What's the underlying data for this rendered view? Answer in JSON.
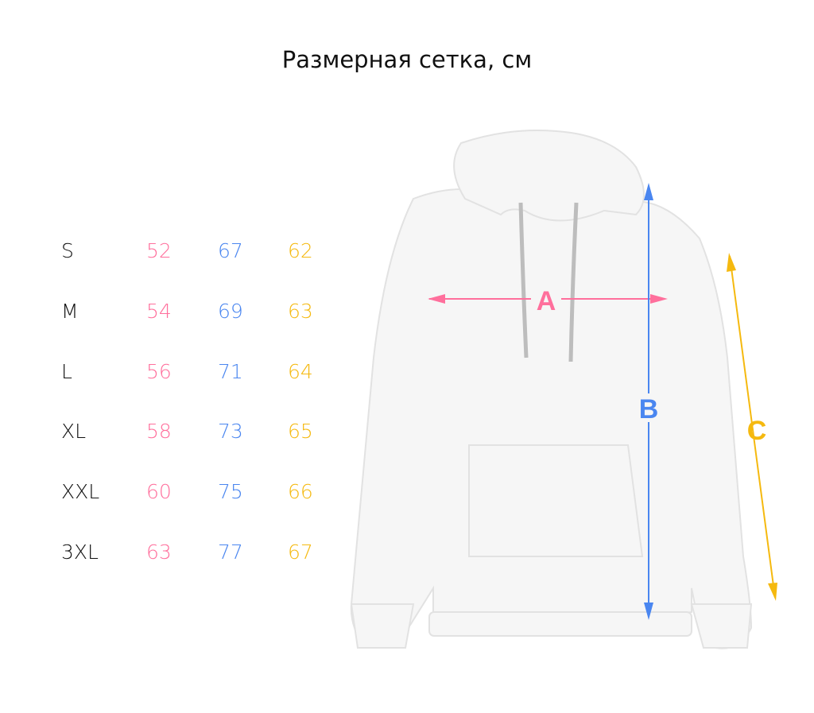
{
  "title": "Размерная сетка, см",
  "colors": {
    "A": "#ff6f9c",
    "B": "#4a86f0",
    "C": "#f5b90f"
  },
  "table": {
    "rows": [
      {
        "size": "S",
        "A": "52",
        "B": "67",
        "C": "62"
      },
      {
        "size": "M",
        "A": "54",
        "B": "69",
        "C": "63"
      },
      {
        "size": "L",
        "A": "56",
        "B": "71",
        "C": "64"
      },
      {
        "size": "XL",
        "A": "58",
        "B": "73",
        "C": "65"
      },
      {
        "size": "XXL",
        "A": "60",
        "B": "75",
        "C": "66"
      },
      {
        "size": "3XL",
        "A": "63",
        "B": "77",
        "C": "67"
      }
    ]
  },
  "diagram": {
    "label_a": "A",
    "label_b": "B",
    "label_c": "C"
  }
}
